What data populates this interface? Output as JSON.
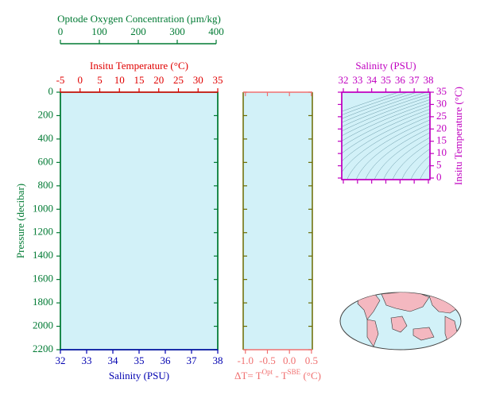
{
  "chart_data": [
    {
      "type": "profile",
      "xlabel": "Salinity (PSU)",
      "xlim": [
        32,
        38
      ],
      "xticks": [
        32,
        33,
        34,
        35,
        36,
        37,
        38
      ],
      "xcolor": "#0000b0",
      "ylabel": "Pressure (decibar)",
      "ylim": [
        0,
        2200
      ],
      "yticks": [
        0,
        200,
        400,
        600,
        800,
        1000,
        1200,
        1400,
        1600,
        1800,
        2000,
        2200
      ],
      "ycolor": "#007a33",
      "y_inverted": true,
      "background": "#d2f1f8",
      "top_axes": [
        {
          "label": "Insitu Temperature (°C)",
          "lim": [
            -5,
            35
          ],
          "ticks": [
            -5,
            0,
            5,
            10,
            15,
            20,
            25,
            30,
            35
          ],
          "color": "#e00000"
        },
        {
          "label": "Optode Oxygen Concentration (µm/kg)",
          "lim": [
            0,
            400
          ],
          "ticks": [
            0,
            100,
            200,
            300,
            400
          ],
          "color": "#007a33"
        }
      ]
    },
    {
      "type": "difference",
      "xlabel": [
        "ΔT= T",
        "Opt",
        " - T",
        "SBE",
        " (°C)"
      ],
      "xlim": [
        -1.05,
        0.52
      ],
      "xticks": [
        {
          "value": -1,
          "label": "-1.0"
        },
        -0.5,
        {
          "value": 0,
          "label": "0.0"
        },
        0.5
      ],
      "xcolor": "#f07070",
      "ylim": [
        0,
        2200
      ],
      "yticks": [
        0,
        200,
        400,
        600,
        800,
        1000,
        1200,
        1400,
        1600,
        1800,
        2000,
        2200
      ],
      "ycolor": "#6b6b00",
      "y_inverted": true,
      "background": "#d2f1f8"
    },
    {
      "type": "ts-diagram",
      "xlabel": "Salinity (PSU)",
      "xlim": [
        32,
        38
      ],
      "xticks": [
        32,
        33,
        34,
        35,
        36,
        37,
        38
      ],
      "ylabel": "Insitu Temperature (°C)",
      "ylim": [
        0,
        35
      ],
      "yticks": [
        0,
        5,
        10,
        15,
        20,
        25,
        30,
        35
      ],
      "color": "#c000c0",
      "background": "#d2f1f8"
    }
  ]
}
